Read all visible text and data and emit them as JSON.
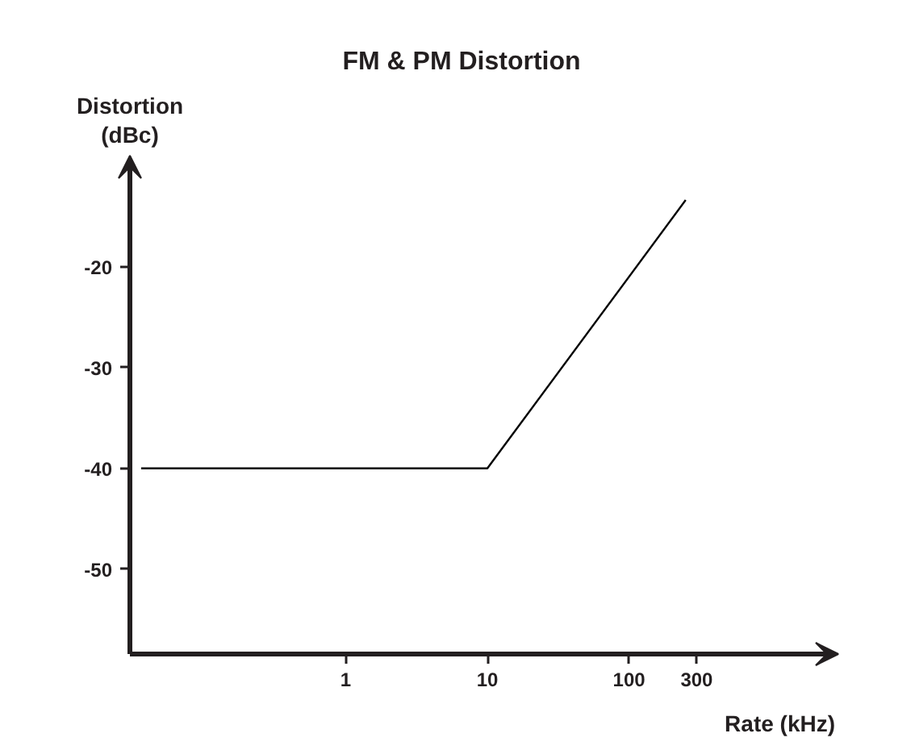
{
  "chart_data": {
    "type": "line",
    "title": "FM & PM Distortion",
    "xlabel": "Rate (kHz)",
    "ylabel": "Distortion (dBc)",
    "x": [
      0.036,
      10,
      251
    ],
    "series": [
      {
        "color": "#000000",
        "values": [
          -40,
          -40,
          -13.4
        ]
      }
    ],
    "log": "x",
    "xlim": [
      0.03,
      3000
    ],
    "ylim": [
      -58.4,
      -9
    ],
    "xticks": [
      1,
      10,
      100,
      300
    ],
    "yticks": [
      -50,
      -40,
      -30,
      -20
    ],
    "grid": false,
    "marker": "none",
    "line_style": "solid"
  }
}
